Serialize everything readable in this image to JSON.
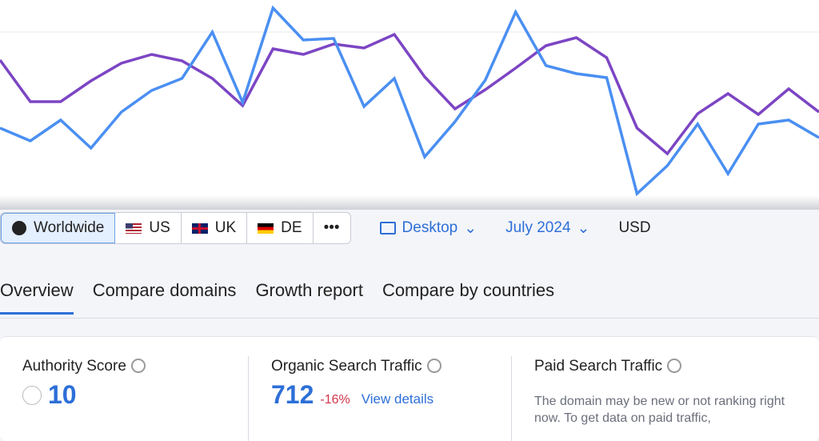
{
  "chart_data": {
    "type": "line",
    "ylim": [
      0,
      250
    ],
    "series": [
      {
        "color": "#7c45c4",
        "values": [
          175,
          123,
          123,
          149,
          171,
          182,
          174,
          152,
          118,
          189,
          182,
          195,
          190,
          207,
          154,
          114,
          138,
          165,
          193,
          203,
          178,
          90,
          58,
          108,
          133,
          107,
          139,
          110
        ]
      },
      {
        "color": "#4a8ff2",
        "values": [
          90,
          74,
          100,
          65,
          110,
          137,
          152,
          210,
          122,
          240,
          200,
          202,
          117,
          152,
          54,
          98,
          150,
          235,
          168,
          158,
          153,
          8,
          43,
          95,
          33,
          95,
          100,
          78
        ]
      }
    ]
  },
  "toolbar": {
    "regions": [
      "Worldwide",
      "US",
      "UK",
      "DE"
    ],
    "more": "•••",
    "device": "Desktop",
    "date": "July 2024",
    "currency": "USD"
  },
  "tabs": [
    "Overview",
    "Compare domains",
    "Growth report",
    "Compare by countries"
  ],
  "cards": [
    {
      "title": "Authority Score",
      "value": 10
    },
    {
      "title": "Organic Search Traffic",
      "value": 712,
      "change": "-16%",
      "link": "View details"
    },
    {
      "title": "Paid Search Traffic",
      "text": "The domain may be new or not ranking right now. To get data on paid traffic,"
    }
  ]
}
